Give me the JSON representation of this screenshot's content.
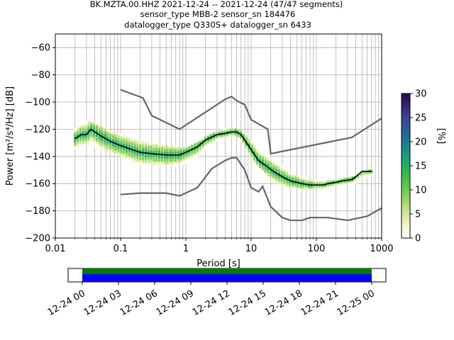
{
  "chart_data": {
    "type": "heatmap",
    "title_lines": [
      "BK.MZTA.00.HHZ   2021-12-24 -- 2021-12-24  (47/47 segments)",
      "sensor_type MBB-2 sensor_sn 184476",
      "datalogger_type Q330S+ datalogger_sn 6433"
    ],
    "xlabel": "Period [s]",
    "ylabel": "Power [m²/s⁴/Hz] [dB]",
    "x_scale": "log",
    "xlim": [
      0.01,
      1000
    ],
    "ylim": [
      -200,
      -50
    ],
    "grid": true,
    "x_tick_labels": [
      "0.01",
      "0.1",
      "1",
      "10",
      "100",
      "1000"
    ],
    "y_ticks": [
      -60,
      -80,
      -100,
      -120,
      -140,
      -160,
      -180,
      -200
    ],
    "y_tick_labels": [
      "−60",
      "−80",
      "−100",
      "−120",
      "−140",
      "−160",
      "−180",
      "−200"
    ],
    "colorbar": {
      "label": "[%]",
      "min": 0,
      "max": 30,
      "ticks": [
        "0",
        "5",
        "10",
        "15",
        "20",
        "25",
        "30"
      ]
    },
    "mode_curve": {
      "x": [
        0.02,
        0.025,
        0.03,
        0.035,
        0.05,
        0.07,
        0.1,
        0.15,
        0.2,
        0.3,
        0.5,
        0.8,
        1.0,
        1.5,
        2.0,
        3.0,
        4.0,
        5.0,
        6.0,
        7.0,
        8.0,
        10,
        13,
        17,
        22,
        30,
        40,
        60,
        80,
        100,
        130,
        150,
        200,
        250,
        350,
        400,
        500,
        700
      ],
      "y": [
        -127,
        -124,
        -124,
        -120,
        -125,
        -129,
        -132,
        -135,
        -137,
        -138,
        -139,
        -139,
        -137,
        -133,
        -128,
        -124,
        -123,
        -122,
        -122,
        -124,
        -128,
        -135,
        -143,
        -147,
        -151,
        -155,
        -158,
        -160,
        -161,
        -161,
        -161,
        -160,
        -159,
        -158,
        -157,
        -155,
        -151,
        -151
      ]
    },
    "nlnm": {
      "x": [
        0.1,
        0.2,
        0.5,
        0.8,
        1.5,
        2.5,
        4.0,
        5.0,
        6.0,
        8.0,
        10.0,
        13.0,
        15.0,
        20.0,
        30.0,
        40.0,
        60.0,
        80.0,
        100.0,
        150.0,
        300.0,
        600.0,
        1000.0
      ],
      "y": [
        -168,
        -167,
        -167,
        -169,
        -163,
        -149,
        -143,
        -141,
        -141,
        -150,
        -163,
        -166,
        -162,
        -177,
        -185,
        -187,
        -187,
        -185,
        -185,
        -185,
        -187,
        -184,
        -178
      ]
    },
    "nhnm": {
      "x": [
        0.1,
        0.22,
        0.3,
        0.8,
        4.0,
        5.0,
        6.0,
        8.0,
        10.0,
        18.0,
        20.0,
        350.0,
        1000.0
      ],
      "y": [
        -91,
        -97,
        -110,
        -120,
        -98,
        -96,
        -99,
        -102,
        -113,
        -120,
        -138,
        -126,
        -112
      ]
    },
    "spread_band": {
      "x": [
        0.02,
        0.03,
        0.05,
        0.1,
        0.2,
        0.5,
        1.0,
        2.0,
        3.0,
        5.0,
        8.0,
        10,
        20,
        30,
        50,
        100,
        200,
        400,
        700
      ],
      "upper": [
        -120,
        -113,
        -118,
        -123,
        -128,
        -132,
        -134,
        -126,
        -121,
        -118,
        -122,
        -128,
        -140,
        -148,
        -154,
        -158,
        -157,
        -154,
        -149
      ],
      "lower": [
        -134,
        -130,
        -136,
        -140,
        -146,
        -148,
        -146,
        -136,
        -128,
        -124,
        -132,
        -142,
        -156,
        -162,
        -164,
        -164,
        -162,
        -160,
        -154
      ]
    },
    "timeline": {
      "x_tick_labels": [
        "12-24 00",
        "12-24 03",
        "12-24 06",
        "12-24 09",
        "12-24 12",
        "12-24 15",
        "12-24 18",
        "12-24 21",
        "12-25 00"
      ],
      "coverage_colors": [
        "#008000",
        "#0000ff"
      ]
    },
    "colors": {
      "mode_line": "#000000",
      "noise_model_line": "#666666",
      "grid": "#b0b0b0"
    }
  }
}
